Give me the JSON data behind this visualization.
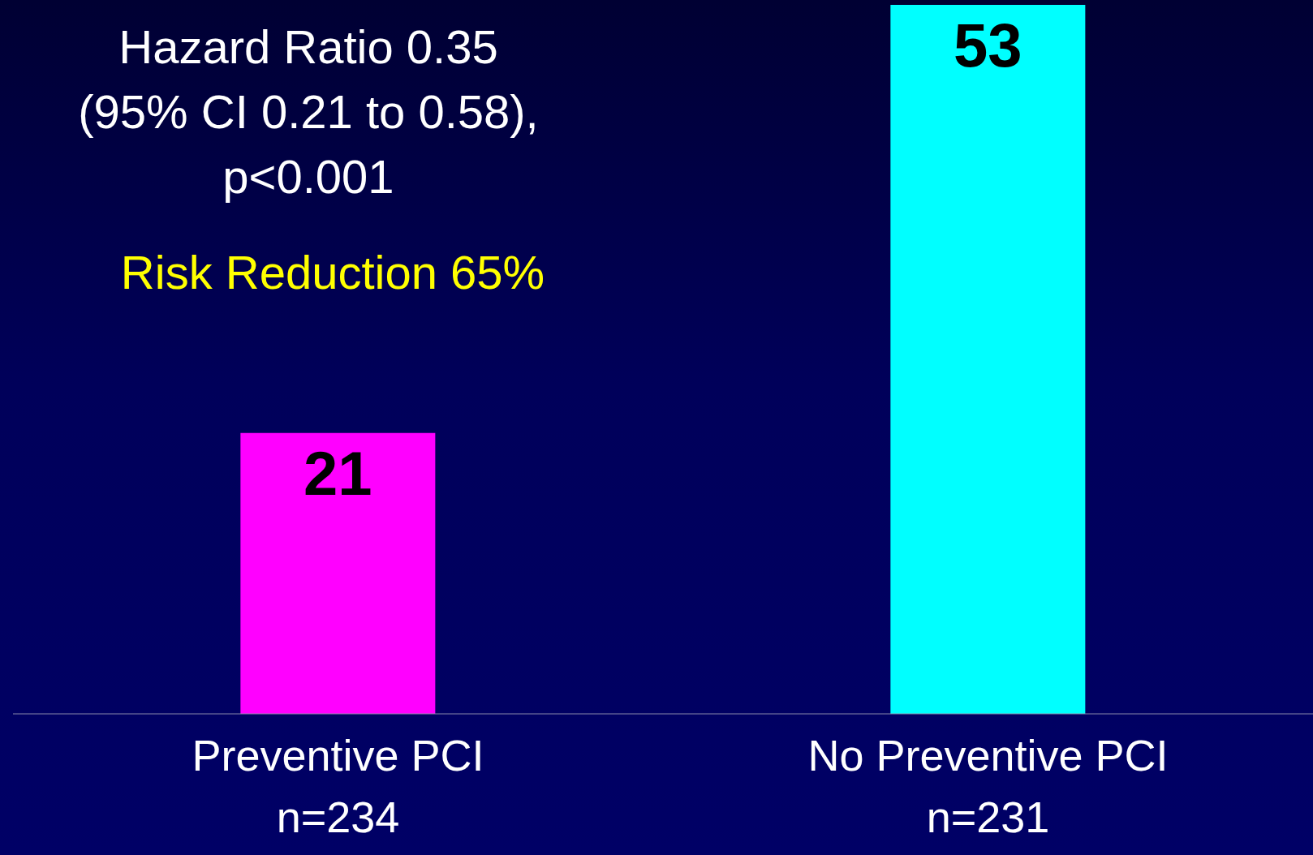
{
  "chart_data": {
    "type": "bar",
    "categories": [
      "Preventive PCI\nn=234",
      "No Preventive PCI\nn=231"
    ],
    "values": [
      21,
      53
    ],
    "colors": [
      "#ff00ff",
      "#00ffff"
    ],
    "data_labels": true,
    "annotations": [
      "Hazard Ratio 0.35\n(95% CI 0.21 to 0.58),\np<0.001",
      "Risk Reduction 65%"
    ]
  }
}
